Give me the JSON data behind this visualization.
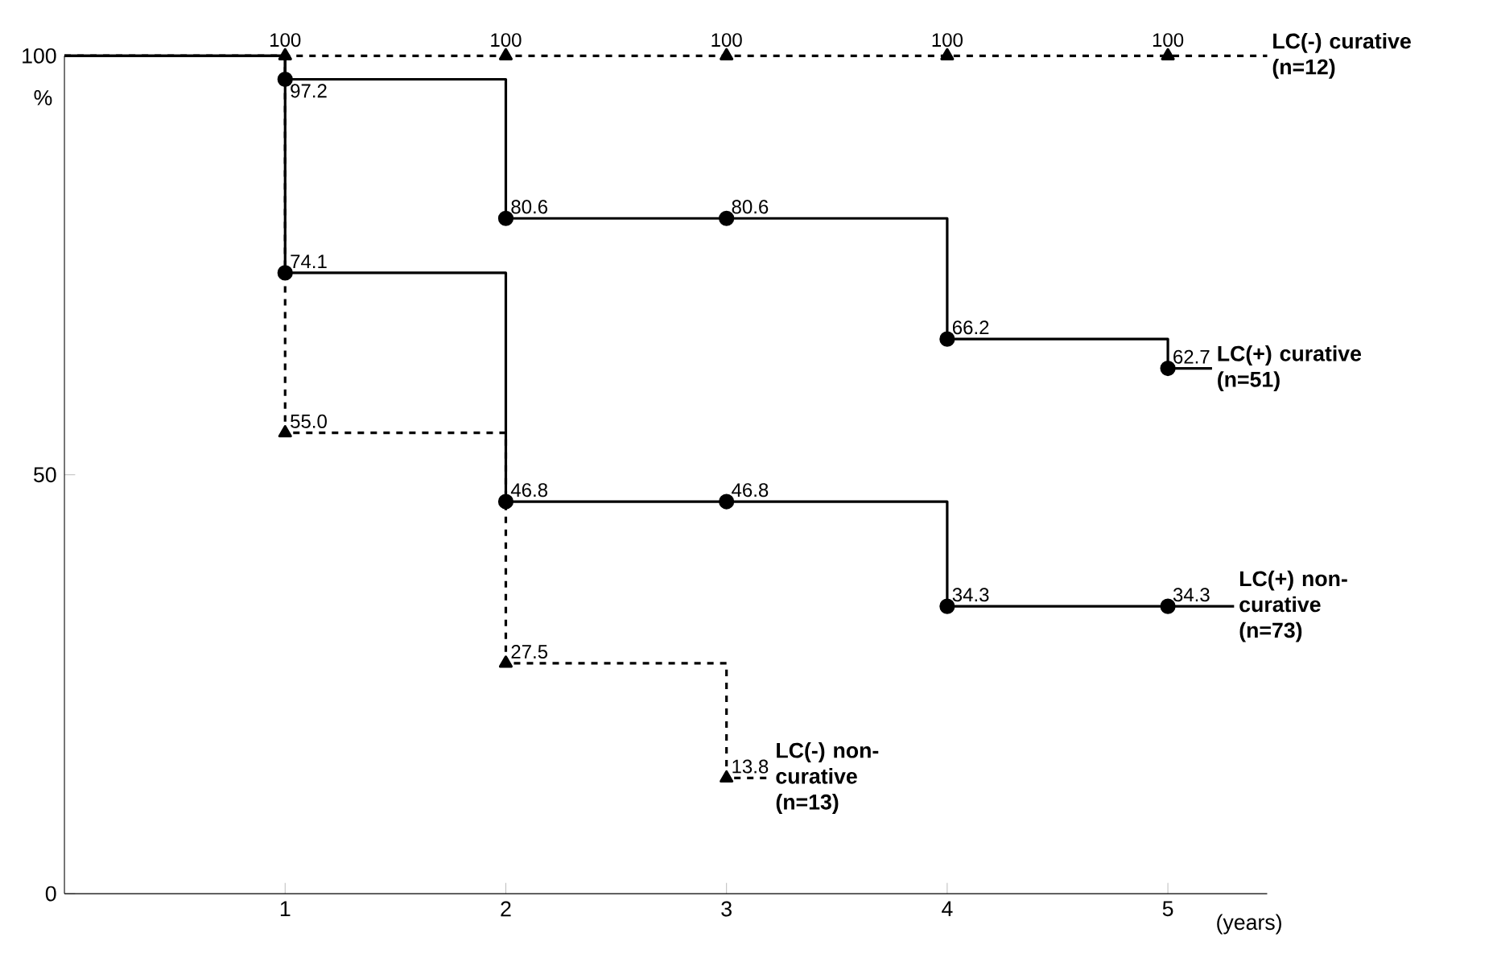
{
  "chart_data": {
    "type": "step",
    "xlabel": "(years)",
    "ylabel": "%",
    "xlim": [
      0,
      5.45
    ],
    "ylim": [
      0,
      100
    ],
    "xticks": [
      1,
      2,
      3,
      4,
      5
    ],
    "yticks": [
      0,
      50,
      100
    ],
    "legend": false,
    "grid": false,
    "series": [
      {
        "name": "LC(-) curative (n=12)",
        "color": "#000000",
        "line_style": "dashed",
        "marker": "triangle",
        "x": [
          0,
          1,
          2,
          3,
          4,
          5,
          5.45
        ],
        "values": [
          100,
          100,
          100,
          100,
          100,
          100,
          100
        ],
        "value_labels": [
          null,
          "100",
          "100",
          "100",
          "100",
          "100",
          null
        ]
      },
      {
        "name": "LC(+) curative (n=51)",
        "color": "#000000",
        "line_style": "solid",
        "marker": "circle",
        "x": [
          0,
          1,
          2,
          3,
          4,
          5,
          5.2
        ],
        "values": [
          100,
          97.2,
          80.6,
          80.6,
          66.2,
          62.7,
          62.7
        ],
        "value_labels": [
          null,
          "97.2",
          "80.6",
          "80.6",
          "66.2",
          "62.7",
          null
        ]
      },
      {
        "name": "LC(+) non-curative (n=73)",
        "color": "#000000",
        "line_style": "solid",
        "marker": "circle",
        "x": [
          0,
          1,
          2,
          3,
          4,
          5,
          5.3
        ],
        "values": [
          100,
          74.1,
          46.8,
          46.8,
          34.3,
          34.3,
          34.3
        ],
        "value_labels": [
          null,
          "74.1",
          "46.8",
          "46.8",
          "34.3",
          "34.3",
          null
        ]
      },
      {
        "name": "LC(-) non-curative (n=13)",
        "color": "#000000",
        "line_style": "dashed",
        "marker": "triangle",
        "x": [
          0,
          1,
          2,
          3,
          3.2
        ],
        "values": [
          100,
          55.0,
          27.5,
          13.8,
          13.8
        ],
        "value_labels": [
          null,
          "55.0",
          "27.5",
          "13.8",
          null
        ]
      }
    ]
  }
}
